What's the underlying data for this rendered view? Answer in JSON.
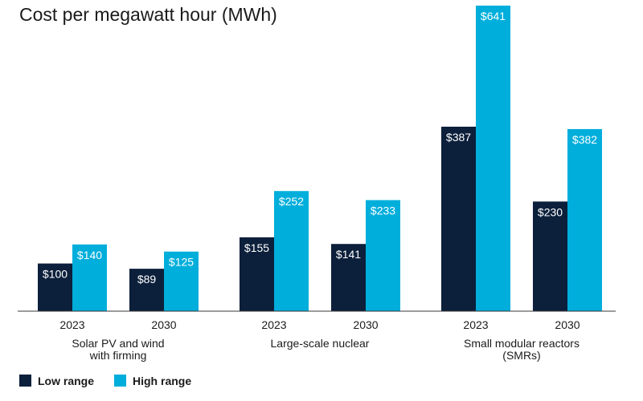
{
  "chart_data": {
    "type": "bar",
    "title": "Cost per megawatt hour (MWh)",
    "groups": [
      {
        "label_lines": [
          "Solar PV and wind",
          "with firming"
        ],
        "years": [
          "2023",
          "2030"
        ],
        "low": [
          100,
          89
        ],
        "high": [
          140,
          125
        ]
      },
      {
        "label_lines": [
          "Large-scale nuclear"
        ],
        "years": [
          "2023",
          "2030"
        ],
        "low": [
          155,
          141
        ],
        "high": [
          252,
          233
        ]
      },
      {
        "label_lines": [
          "Small modular reactors",
          "(SMRs)"
        ],
        "years": [
          "2023",
          "2030"
        ],
        "low": [
          387,
          230
        ],
        "high": [
          641,
          382
        ]
      }
    ],
    "series": [
      {
        "name": "Low range",
        "color": "#0c1f3b"
      },
      {
        "name": "High range",
        "color": "#00aedb"
      }
    ],
    "value_prefix": "$",
    "ylim": [
      0,
      641
    ],
    "grid": false,
    "legend_position": "bottom-left"
  }
}
